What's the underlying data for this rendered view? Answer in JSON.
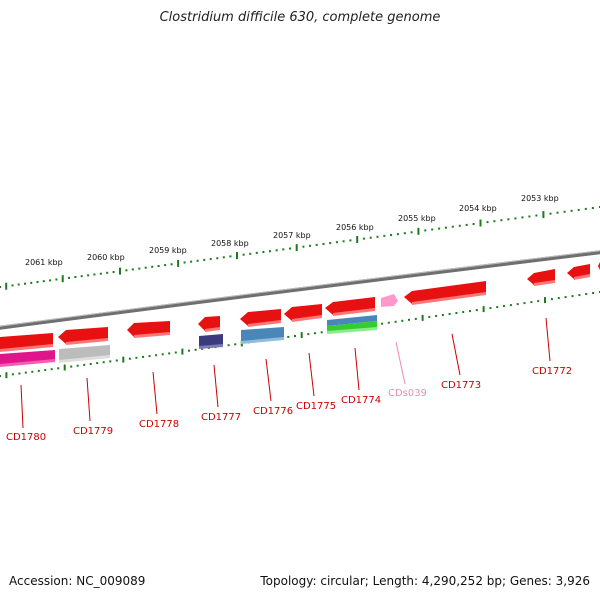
{
  "title": "Clostridium difficile 630, complete genome",
  "footer": {
    "accession": "Accession: NC_009089",
    "summary": "Topology: circular; Length: 4,290,252 bp; Genes: 3,926"
  },
  "colors": {
    "gene": "#ee1111",
    "gene_light": "#ff6666",
    "backbone": "#777777",
    "tick": "#1f7a1f",
    "label_red": "#cc0000",
    "label_pink": "#ee88bb",
    "magenta": "#e0158c",
    "gray": "#b8b8b8",
    "navy": "#3a3a7a",
    "steel": "#4a86b8",
    "green": "#33cc33",
    "pink": "#ff99cc"
  },
  "kbp_labels": [
    "2061 kbp",
    "2060 kbp",
    "2059 kbp",
    "2058 kbp",
    "2057 kbp",
    "2056 kbp",
    "2055 kbp",
    "2054 kbp",
    "2053 kbp"
  ],
  "gene_labels": [
    "CD1780",
    "CD1779",
    "CD1778",
    "CD1777",
    "CD1776",
    "CD1775",
    "CD1774",
    "CDs039",
    "CD1773",
    "CD1772"
  ]
}
